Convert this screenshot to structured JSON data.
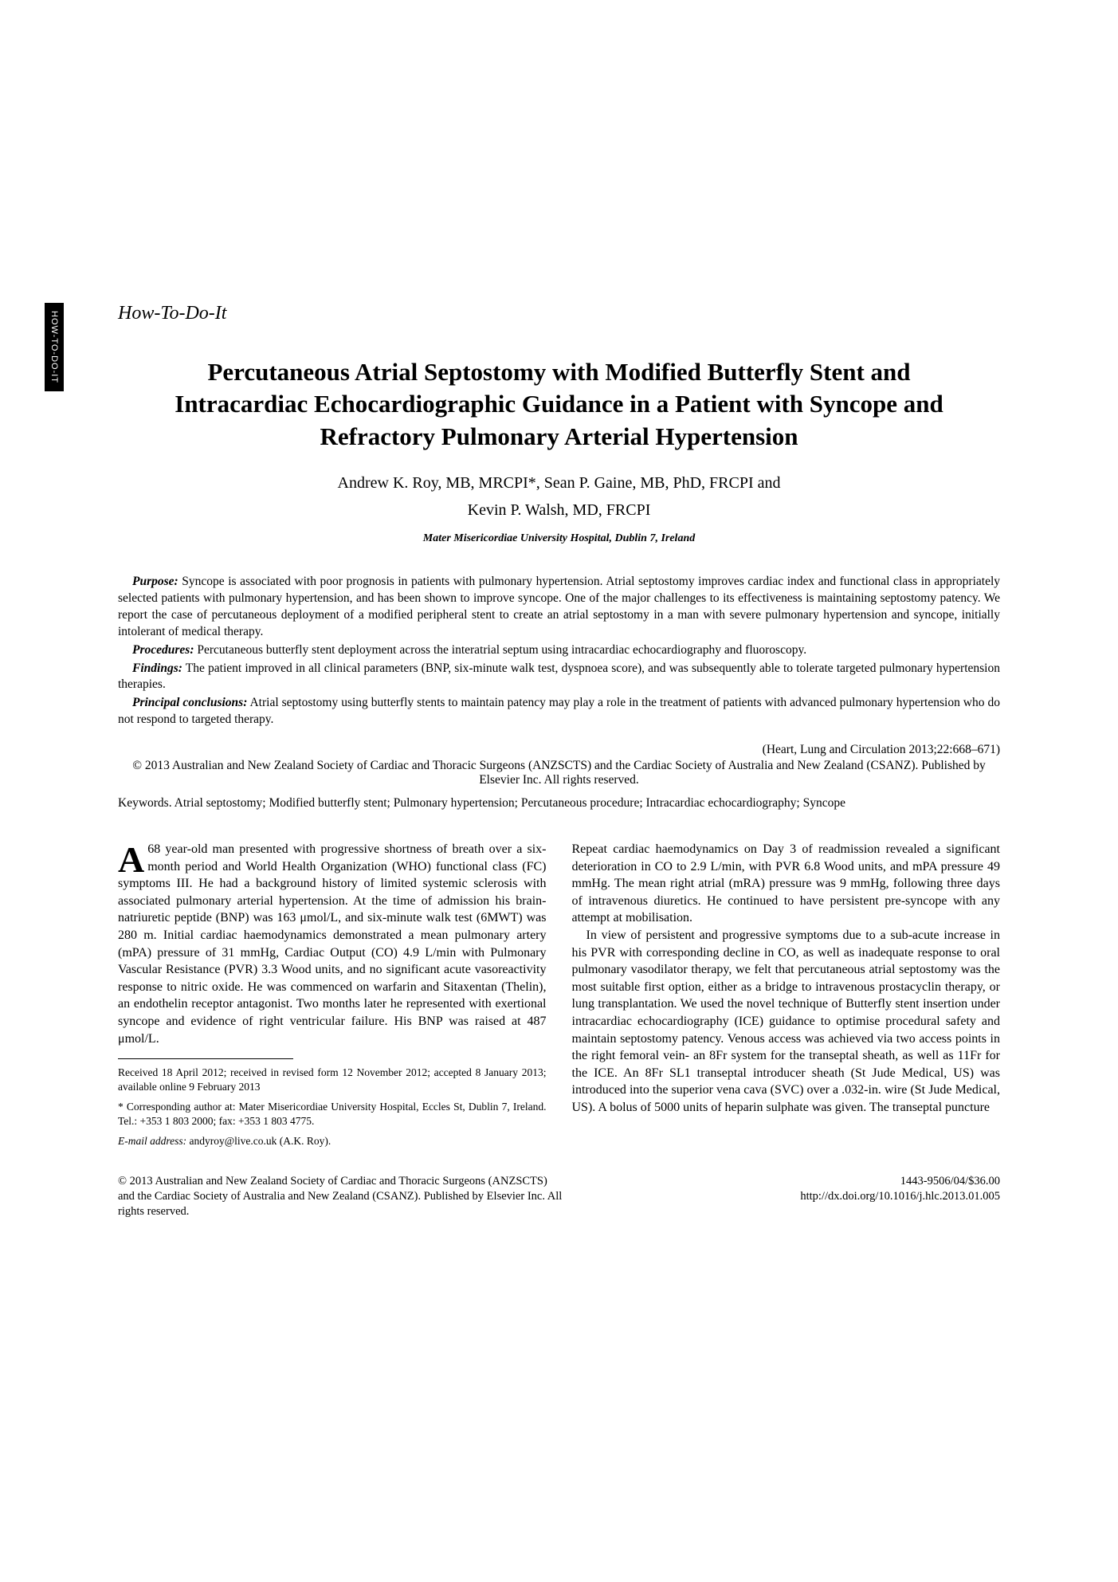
{
  "side_tab": "HOW-TO-DO-IT",
  "section_label": "How-To-Do-It",
  "title": "Percutaneous Atrial Septostomy with Modified Butterfly Stent and Intracardiac Echocardiographic Guidance in a Patient with Syncope and Refractory Pulmonary Arterial Hypertension",
  "authors_line1": "Andrew K. Roy, MB, MRCPI*, Sean P. Gaine, MB, PhD, FRCPI and",
  "authors_line2": "Kevin P. Walsh, MD, FRCPI",
  "affiliation": "Mater Misericordiae University Hospital, Dublin 7, Ireland",
  "abstract": {
    "purpose_label": "Purpose:",
    "purpose": "Syncope is associated with poor prognosis in patients with pulmonary hypertension. Atrial septostomy improves cardiac index and functional class in appropriately selected patients with pulmonary hypertension, and has been shown to improve syncope. One of the major challenges to its effectiveness is maintaining septostomy patency. We report the case of percutaneous deployment of a modified peripheral stent to create an atrial septostomy in a man with severe pulmonary hypertension and syncope, initially intolerant of medical therapy.",
    "procedures_label": "Procedures:",
    "procedures": "Percutaneous butterfly stent deployment across the interatrial septum using intracardiac echocardiography and fluoroscopy.",
    "findings_label": "Findings:",
    "findings": "The patient improved in all clinical parameters (BNP, six-minute walk test, dyspnoea score), and was subsequently able to tolerate targeted pulmonary hypertension therapies.",
    "conclusions_label": "Principal conclusions:",
    "conclusions": "Atrial septostomy using butterfly stents to maintain patency may play a role in the treatment of patients with advanced pulmonary hypertension who do not respond to targeted therapy."
  },
  "citation": "(Heart, Lung and Circulation 2013;22:668–671)",
  "copyright_abs": "© 2013 Australian and New Zealand Society of Cardiac and Thoracic Surgeons (ANZSCTS) and the Cardiac Society of Australia and New Zealand (CSANZ). Published by Elsevier Inc. All rights reserved.",
  "keywords_label": "Keywords.",
  "keywords": "Atrial septostomy; Modified butterfly stent; Pulmonary hypertension; Percutaneous procedure; Intracardiac echocardiography; Syncope",
  "body": {
    "col1_p1": "A 68 year-old man presented with progressive shortness of breath over a six-month period and World Health Organization (WHO) functional class (FC) symptoms III. He had a background history of limited systemic sclerosis with associated pulmonary arterial hypertension. At the time of admission his brain-natriuretic peptide (BNP) was 163 μmol/L, and six-minute walk test (6MWT) was 280 m. Initial cardiac haemodynamics demonstrated a mean pulmonary artery (mPA) pressure of 31 mmHg, Cardiac Output (CO) 4.9 L/min with Pulmonary Vascular Resistance (PVR) 3.3 Wood units, and no significant acute vasoreactivity response to nitric oxide. He was commenced on warfarin and Sitaxentan (Thelin), an endothelin receptor antagonist. Two months later he represented with exertional syncope and evidence of right ventricular failure. His BNP was raised at 487 μmol/L.",
    "col2_p1": "Repeat cardiac haemodynamics on Day 3 of readmission revealed a significant deterioration in CO to 2.9 L/min, with PVR 6.8 Wood units, and mPA pressure 49 mmHg. The mean right atrial (mRA) pressure was 9 mmHg, following three days of intravenous diuretics. He continued to have persistent pre-syncope with any attempt at mobilisation.",
    "col2_p2": "In view of persistent and progressive symptoms due to a sub-acute increase in his PVR with corresponding decline in CO, as well as inadequate response to oral pulmonary vasodilator therapy, we felt that percutaneous atrial septostomy was the most suitable first option, either as a bridge to intravenous prostacyclin therapy, or lung transplantation. We used the novel technique of Butterfly stent insertion under intracardiac echocardiography (ICE) guidance to optimise procedural safety and maintain septostomy patency. Venous access was achieved via two access points in the right femoral vein- an 8Fr system for the transeptal sheath, as well as 11Fr for the ICE. An 8Fr SL1 transeptal introducer sheath (St Jude Medical, US) was introduced into the superior vena cava (SVC) over a .032-in. wire (St Jude Medical, US). A bolus of 5000 units of heparin sulphate was given. The transeptal puncture"
  },
  "footnotes": {
    "received": "Received 18 April 2012; received in revised form 12 November 2012; accepted 8 January 2013; available online 9 February 2013",
    "corresponding": "* Corresponding author at: Mater Misericordiae University Hospital, Eccles St, Dublin 7, Ireland. Tel.: +353 1 803 2000; fax: +353 1 803 4775.",
    "email_label": "E-mail address:",
    "email": "andyroy@live.co.uk (A.K. Roy)."
  },
  "footer": {
    "left": "© 2013 Australian and New Zealand Society of Cardiac and Thoracic Surgeons (ANZSCTS) and the Cardiac Society of Australia and New Zealand (CSANZ). Published by Elsevier Inc. All rights reserved.",
    "issn": "1443-9506/04/$36.00",
    "doi": "http://dx.doi.org/10.1016/j.hlc.2013.01.005"
  }
}
